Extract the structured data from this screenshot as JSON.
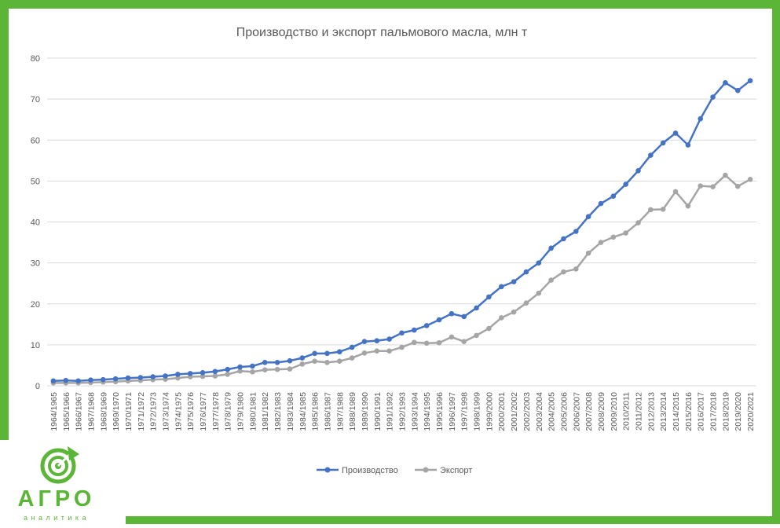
{
  "colors": {
    "frame": "#5bb536",
    "logo_green": "#5bb536",
    "series_production": "#4472c4",
    "series_export": "#a5a5a5",
    "grid": "#d9d9d9",
    "text": "#595959"
  },
  "logo": {
    "name": "АГРО",
    "tagline": "аналитика",
    "icon": "target-arrow-icon"
  },
  "chart_data": {
    "type": "line",
    "title": "Производство и экспорт пальмового масла, млн т",
    "xlabel": "",
    "ylabel": "",
    "ylim": [
      0,
      80
    ],
    "yticks": [
      0,
      10,
      20,
      30,
      40,
      50,
      60,
      70,
      80
    ],
    "grid": true,
    "legend_position": "bottom",
    "categories": [
      "1964/1965",
      "1965/1966",
      "1966/1967",
      "1967/1968",
      "1968/1969",
      "1969/1970",
      "1970/1971",
      "1971/1972",
      "1972/1973",
      "1973/1974",
      "1974/1975",
      "1975/1976",
      "1976/1977",
      "1977/1978",
      "1978/1979",
      "1979/1980",
      "1980/1981",
      "1981/1982",
      "1982/1983",
      "1983/1984",
      "1984/1985",
      "1985/1986",
      "1986/1987",
      "1987/1988",
      "1988/1989",
      "1989/1990",
      "1990/1991",
      "1991/1992",
      "1992/1993",
      "1993/1994",
      "1994/1995",
      "1995/1996",
      "1996/1997",
      "1997/1998",
      "1998/1999",
      "1999/2000",
      "2000/2001",
      "2001/2002",
      "2002/2003",
      "2003/2004",
      "2004/2005",
      "2005/2006",
      "2006/2007",
      "2007/2008",
      "2008/2009",
      "2009/2010",
      "2010/2011",
      "2011/2012",
      "2012/2013",
      "2013/2014",
      "2014/2015",
      "2015/2016",
      "2016/2017",
      "2017/2018",
      "2018/2019",
      "2019/2020",
      "2020/2021"
    ],
    "series": [
      {
        "name": "Производство",
        "values": [
          1.2,
          1.3,
          1.2,
          1.4,
          1.5,
          1.7,
          1.9,
          2.0,
          2.2,
          2.4,
          2.8,
          3.0,
          3.2,
          3.5,
          4.0,
          4.6,
          4.8,
          5.7,
          5.7,
          6.1,
          6.8,
          7.9,
          7.9,
          8.3,
          9.4,
          10.8,
          11.0,
          11.4,
          12.9,
          13.6,
          14.7,
          16.1,
          17.6,
          16.9,
          19.0,
          21.7,
          24.2,
          25.4,
          27.8,
          30.0,
          33.6,
          35.9,
          37.7,
          41.3,
          44.5,
          46.3,
          49.2,
          52.5,
          56.3,
          59.3,
          61.7,
          58.8,
          65.2,
          70.5,
          74.0,
          72.1,
          74.5
        ]
      },
      {
        "name": "Экспорт",
        "values": [
          0.7,
          0.7,
          0.7,
          0.8,
          0.9,
          1.0,
          1.2,
          1.3,
          1.5,
          1.6,
          1.9,
          2.2,
          2.3,
          2.4,
          2.8,
          3.6,
          3.4,
          3.9,
          4.0,
          4.1,
          5.3,
          6.0,
          5.7,
          6.0,
          6.8,
          8.0,
          8.5,
          8.5,
          9.4,
          10.6,
          10.4,
          10.5,
          11.9,
          10.8,
          12.3,
          14.0,
          16.6,
          18.0,
          20.2,
          22.6,
          25.8,
          27.8,
          28.5,
          32.4,
          35.0,
          36.3,
          37.3,
          39.8,
          43.0,
          43.1,
          47.4,
          43.9,
          48.8,
          48.6,
          51.4,
          48.7,
          50.4
        ]
      }
    ]
  }
}
